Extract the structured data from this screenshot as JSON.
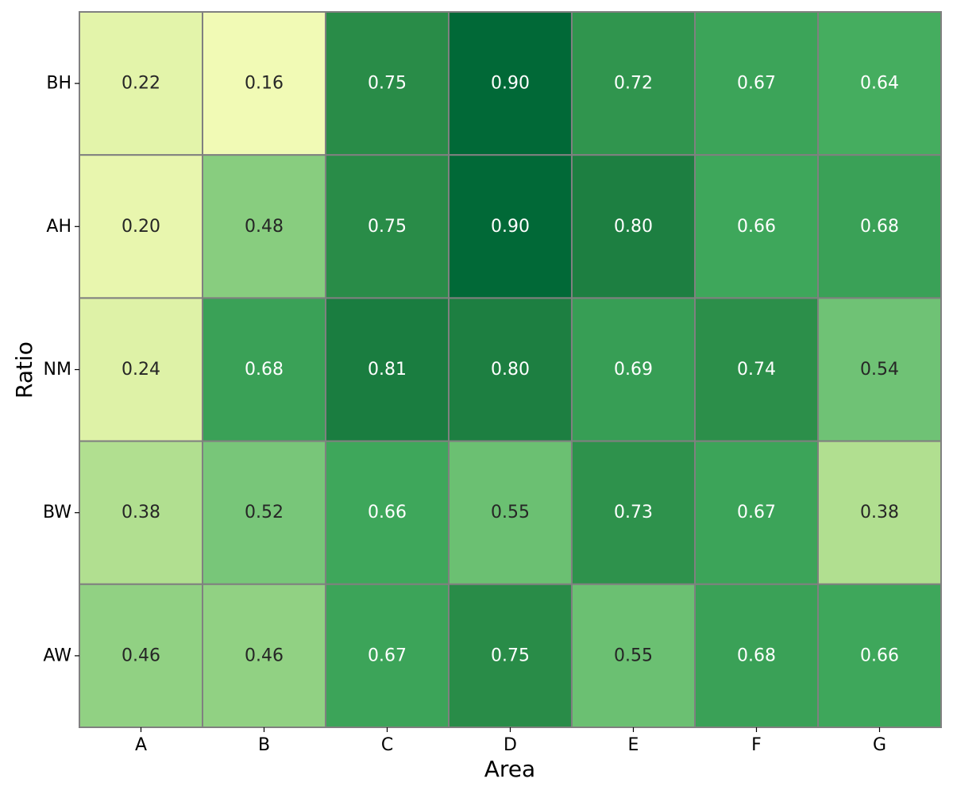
{
  "chart_data": {
    "type": "heatmap",
    "xlabel": "Area",
    "ylabel": "Ratio",
    "x_categories": [
      "A",
      "B",
      "C",
      "D",
      "E",
      "F",
      "G"
    ],
    "y_categories": [
      "BH",
      "AH",
      "NM",
      "BW",
      "AW"
    ],
    "values": [
      [
        0.22,
        0.16,
        0.75,
        0.9,
        0.72,
        0.67,
        0.64
      ],
      [
        0.2,
        0.48,
        0.75,
        0.9,
        0.8,
        0.66,
        0.68
      ],
      [
        0.24,
        0.68,
        0.81,
        0.8,
        0.69,
        0.74,
        0.54
      ],
      [
        0.38,
        0.52,
        0.66,
        0.55,
        0.73,
        0.67,
        0.38
      ],
      [
        0.46,
        0.46,
        0.67,
        0.75,
        0.55,
        0.68,
        0.66
      ]
    ],
    "value_format": "0.00",
    "colormap": "YlGn",
    "color_range": [
      0.16,
      0.9
    ],
    "grid": true,
    "cell_border_color": "#808080",
    "annotation_colors": {
      "dark_text": "#262626",
      "light_text": "#ffffff"
    },
    "legend": "none"
  }
}
